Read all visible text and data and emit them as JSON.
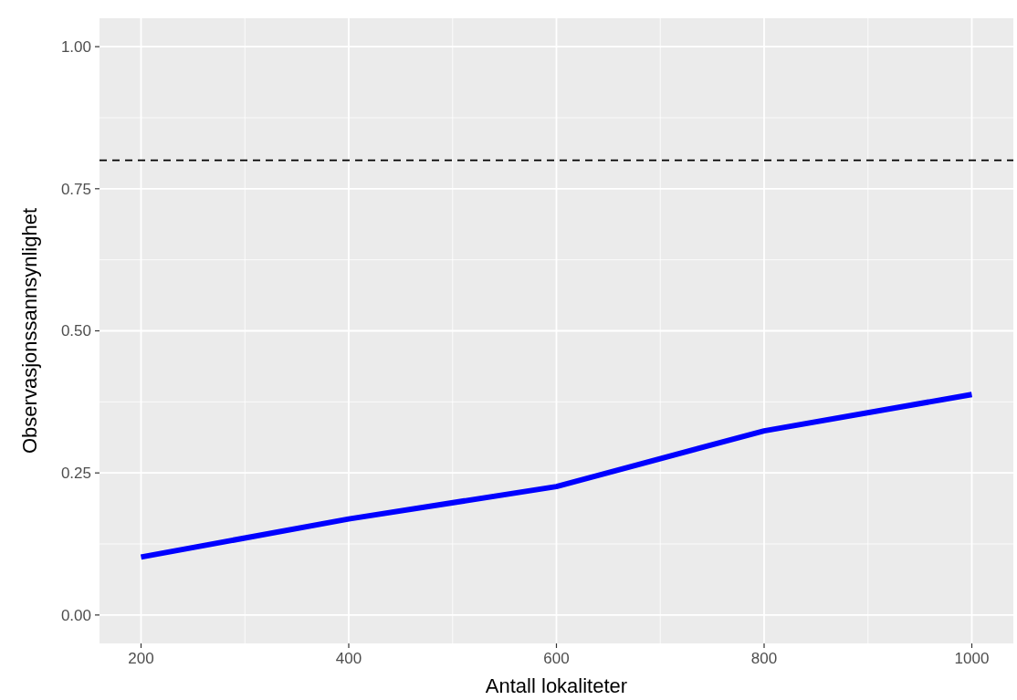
{
  "chart_data": {
    "type": "line",
    "xlabel": "Antall lokaliteter",
    "ylabel": "Observasjonssannsynlighet",
    "x": [
      200,
      400,
      600,
      800,
      1000
    ],
    "series": [
      {
        "color": "#0000ff",
        "values": [
          0.102,
          0.169,
          0.226,
          0.324,
          0.388
        ]
      }
    ],
    "xlim": [
      160,
      1040
    ],
    "xticks": [
      200,
      400,
      600,
      800,
      1000
    ],
    "ylim": [
      -0.05,
      1.05
    ],
    "yticks": [
      {
        "value": 0,
        "label": "0.00"
      },
      {
        "value": 0.25,
        "label": "0.25"
      },
      {
        "value": 0.5,
        "label": "0.50"
      },
      {
        "value": 0.75,
        "label": "0.75"
      },
      {
        "value": 1,
        "label": "1.00"
      }
    ],
    "ref_lines": [
      {
        "axis": "y",
        "value": 0.8,
        "color": "#000000",
        "line_style": "dashed"
      }
    ],
    "grid": true
  }
}
